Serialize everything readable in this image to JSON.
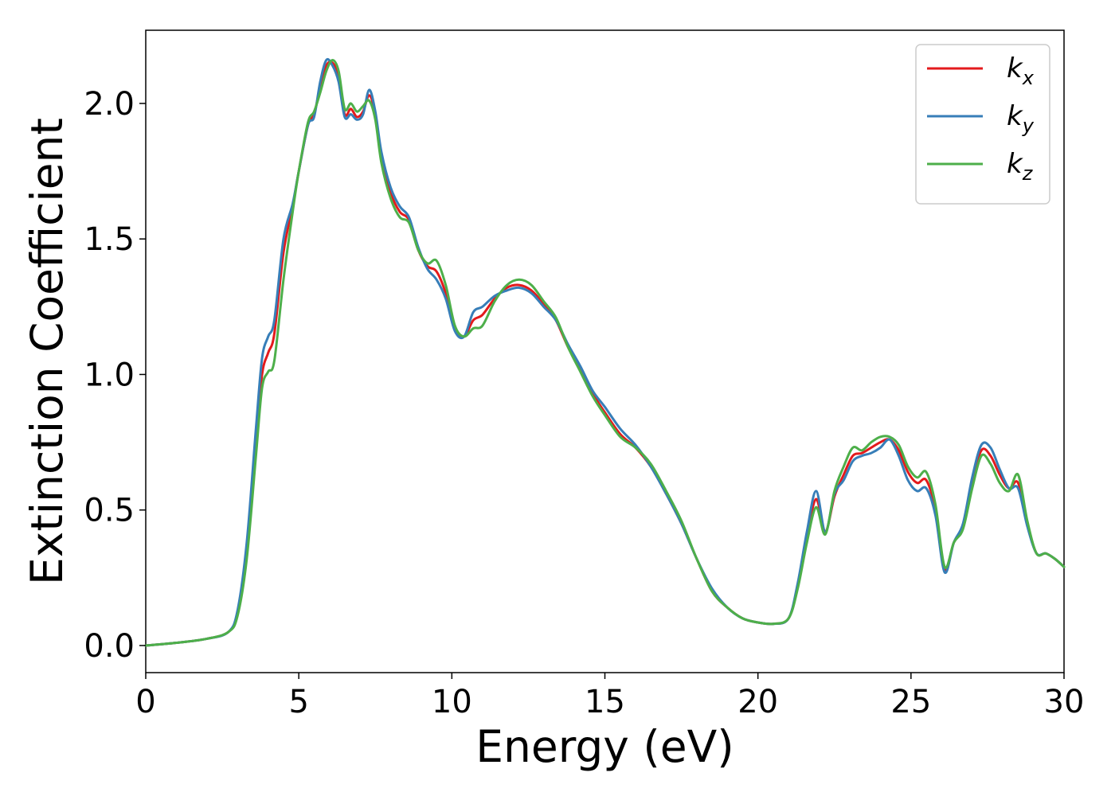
{
  "chart_data": {
    "type": "line",
    "xlabel": "Energy (eV)",
    "ylabel": "Extinction Coefficient",
    "xlim": [
      0,
      30
    ],
    "ylim": [
      -0.1,
      2.27
    ],
    "xticks": [
      0,
      5,
      10,
      15,
      20,
      25,
      30
    ],
    "yticks": [
      0.0,
      0.5,
      1.0,
      1.5,
      2.0
    ],
    "xtick_labels": [
      "0",
      "5",
      "10",
      "15",
      "20",
      "25",
      "30"
    ],
    "ytick_labels": [
      "0.0",
      "0.5",
      "1.0",
      "1.5",
      "2.0"
    ],
    "grid": false,
    "legend_position": "top-right",
    "series": [
      {
        "name": "kx",
        "base": "k",
        "sub": "x",
        "color": "#e31a1c",
        "x": [
          0,
          1,
          2,
          2.7,
          3.0,
          3.3,
          3.6,
          3.8,
          4.0,
          4.2,
          4.5,
          4.8,
          5.0,
          5.3,
          5.5,
          5.7,
          5.9,
          6.1,
          6.3,
          6.5,
          6.7,
          6.9,
          7.1,
          7.3,
          7.5,
          7.7,
          8.0,
          8.3,
          8.6,
          8.9,
          9.2,
          9.5,
          9.8,
          10.1,
          10.4,
          10.7,
          11.0,
          11.4,
          11.8,
          12.2,
          12.6,
          13.0,
          13.4,
          13.8,
          14.2,
          14.6,
          15.0,
          15.5,
          16.0,
          16.5,
          17.0,
          17.5,
          18.0,
          18.5,
          19.0,
          19.5,
          20.0,
          20.5,
          21.0,
          21.3,
          21.6,
          21.9,
          22.2,
          22.5,
          22.8,
          23.1,
          23.4,
          23.7,
          24.0,
          24.3,
          24.6,
          24.9,
          25.2,
          25.5,
          25.8,
          26.1,
          26.4,
          26.7,
          27.0,
          27.3,
          27.6,
          27.9,
          28.2,
          28.5,
          28.8,
          29.1,
          29.4,
          29.7,
          30.0
        ],
        "y": [
          0.0,
          0.01,
          0.025,
          0.05,
          0.12,
          0.35,
          0.75,
          1.0,
          1.08,
          1.15,
          1.45,
          1.62,
          1.75,
          1.92,
          1.96,
          2.06,
          2.14,
          2.15,
          2.1,
          1.96,
          1.98,
          1.95,
          1.97,
          2.03,
          1.96,
          1.8,
          1.67,
          1.6,
          1.57,
          1.46,
          1.4,
          1.38,
          1.3,
          1.17,
          1.14,
          1.2,
          1.22,
          1.28,
          1.32,
          1.33,
          1.31,
          1.26,
          1.2,
          1.1,
          1.02,
          0.93,
          0.86,
          0.78,
          0.73,
          0.66,
          0.56,
          0.45,
          0.32,
          0.2,
          0.14,
          0.1,
          0.085,
          0.08,
          0.1,
          0.22,
          0.4,
          0.54,
          0.42,
          0.55,
          0.63,
          0.7,
          0.71,
          0.73,
          0.75,
          0.76,
          0.72,
          0.64,
          0.6,
          0.61,
          0.5,
          0.28,
          0.38,
          0.44,
          0.6,
          0.72,
          0.7,
          0.63,
          0.58,
          0.6,
          0.45,
          0.34,
          0.34,
          0.32,
          0.29
        ]
      },
      {
        "name": "ky",
        "base": "k",
        "sub": "y",
        "color": "#377eb8",
        "x": [
          0,
          1,
          2,
          2.7,
          3.0,
          3.3,
          3.6,
          3.8,
          4.0,
          4.2,
          4.5,
          4.8,
          5.0,
          5.3,
          5.5,
          5.7,
          5.9,
          6.1,
          6.3,
          6.5,
          6.7,
          6.9,
          7.1,
          7.3,
          7.5,
          7.7,
          8.0,
          8.3,
          8.6,
          8.9,
          9.2,
          9.5,
          9.8,
          10.1,
          10.4,
          10.7,
          11.0,
          11.4,
          11.8,
          12.2,
          12.6,
          13.0,
          13.4,
          13.8,
          14.2,
          14.6,
          15.0,
          15.5,
          16.0,
          16.5,
          17.0,
          17.5,
          18.0,
          18.5,
          19.0,
          19.5,
          20.0,
          20.5,
          21.0,
          21.3,
          21.6,
          21.9,
          22.2,
          22.5,
          22.8,
          23.1,
          23.4,
          23.7,
          24.0,
          24.3,
          24.6,
          24.9,
          25.2,
          25.5,
          25.8,
          26.1,
          26.4,
          26.7,
          27.0,
          27.3,
          27.6,
          27.9,
          28.2,
          28.5,
          28.8,
          29.1,
          29.4,
          29.7,
          30.0
        ],
        "y": [
          0.0,
          0.01,
          0.025,
          0.05,
          0.13,
          0.38,
          0.8,
          1.06,
          1.14,
          1.2,
          1.5,
          1.63,
          1.75,
          1.92,
          1.95,
          2.08,
          2.16,
          2.14,
          2.08,
          1.95,
          1.96,
          1.94,
          1.96,
          2.05,
          1.97,
          1.82,
          1.69,
          1.62,
          1.58,
          1.47,
          1.39,
          1.35,
          1.28,
          1.16,
          1.14,
          1.23,
          1.25,
          1.29,
          1.31,
          1.32,
          1.3,
          1.25,
          1.2,
          1.11,
          1.03,
          0.94,
          0.88,
          0.8,
          0.74,
          0.66,
          0.56,
          0.45,
          0.32,
          0.21,
          0.14,
          0.1,
          0.085,
          0.08,
          0.1,
          0.23,
          0.42,
          0.57,
          0.42,
          0.56,
          0.61,
          0.68,
          0.7,
          0.71,
          0.73,
          0.76,
          0.7,
          0.61,
          0.57,
          0.58,
          0.48,
          0.27,
          0.38,
          0.45,
          0.62,
          0.74,
          0.73,
          0.65,
          0.58,
          0.58,
          0.44,
          0.34,
          0.34,
          0.32,
          0.29
        ]
      },
      {
        "name": "kz",
        "base": "k",
        "sub": "z",
        "color": "#4daf4a",
        "x": [
          0,
          1,
          2,
          2.7,
          3.0,
          3.3,
          3.6,
          3.8,
          4.0,
          4.2,
          4.5,
          4.8,
          5.0,
          5.3,
          5.5,
          5.7,
          5.9,
          6.1,
          6.3,
          6.5,
          6.7,
          6.9,
          7.1,
          7.3,
          7.5,
          7.7,
          8.0,
          8.3,
          8.6,
          8.9,
          9.2,
          9.5,
          9.8,
          10.1,
          10.4,
          10.7,
          11.0,
          11.4,
          11.8,
          12.2,
          12.6,
          13.0,
          13.4,
          13.8,
          14.2,
          14.6,
          15.0,
          15.5,
          16.0,
          16.5,
          17.0,
          17.5,
          18.0,
          18.5,
          19.0,
          19.5,
          20.0,
          20.5,
          21.0,
          21.3,
          21.6,
          21.9,
          22.2,
          22.5,
          22.8,
          23.1,
          23.4,
          23.7,
          24.0,
          24.3,
          24.6,
          24.9,
          25.2,
          25.5,
          25.8,
          26.1,
          26.4,
          26.7,
          27.0,
          27.3,
          27.6,
          27.9,
          28.2,
          28.5,
          28.8,
          29.1,
          29.4,
          29.7,
          30.0
        ],
        "y": [
          0.0,
          0.01,
          0.025,
          0.05,
          0.11,
          0.32,
          0.7,
          0.95,
          1.01,
          1.05,
          1.35,
          1.6,
          1.75,
          1.93,
          1.97,
          2.04,
          2.12,
          2.16,
          2.12,
          1.98,
          2.0,
          1.97,
          1.99,
          2.01,
          1.94,
          1.78,
          1.65,
          1.58,
          1.56,
          1.46,
          1.41,
          1.42,
          1.33,
          1.18,
          1.14,
          1.17,
          1.18,
          1.27,
          1.33,
          1.35,
          1.33,
          1.27,
          1.21,
          1.1,
          1.01,
          0.92,
          0.85,
          0.77,
          0.73,
          0.67,
          0.57,
          0.46,
          0.32,
          0.2,
          0.14,
          0.1,
          0.085,
          0.08,
          0.1,
          0.21,
          0.38,
          0.51,
          0.41,
          0.57,
          0.66,
          0.73,
          0.72,
          0.75,
          0.77,
          0.77,
          0.74,
          0.66,
          0.62,
          0.64,
          0.52,
          0.29,
          0.38,
          0.43,
          0.58,
          0.7,
          0.67,
          0.6,
          0.57,
          0.63,
          0.46,
          0.34,
          0.34,
          0.32,
          0.29
        ]
      }
    ]
  }
}
